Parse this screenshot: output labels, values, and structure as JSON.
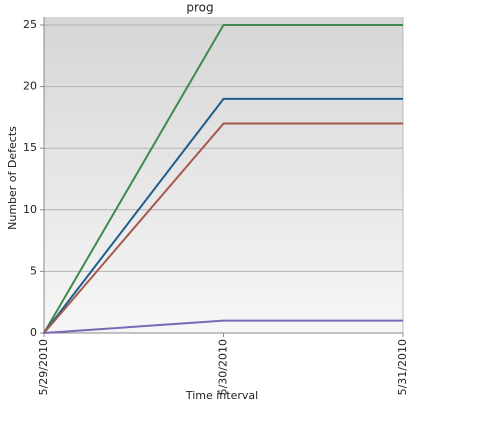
{
  "chart_data": {
    "type": "line",
    "title": "prog",
    "x_label": "Time interval",
    "y_label": "Number of Defects",
    "categories": [
      "5/29/2010",
      "5/30/2010",
      "5/31/2010"
    ],
    "series": [
      {
        "color": "#3f8a4d",
        "values": [
          0,
          25,
          25
        ]
      },
      {
        "color": "#1f5d8c",
        "values": [
          0,
          19,
          19
        ]
      },
      {
        "color": "#a65a4c",
        "values": [
          0,
          17,
          17
        ]
      },
      {
        "color": "#7a68b4",
        "values": [
          0,
          1,
          1
        ]
      }
    ],
    "ylim": [
      0,
      25
    ],
    "yticks": [
      0,
      5,
      10,
      15,
      20,
      25
    ],
    "grid": true
  }
}
